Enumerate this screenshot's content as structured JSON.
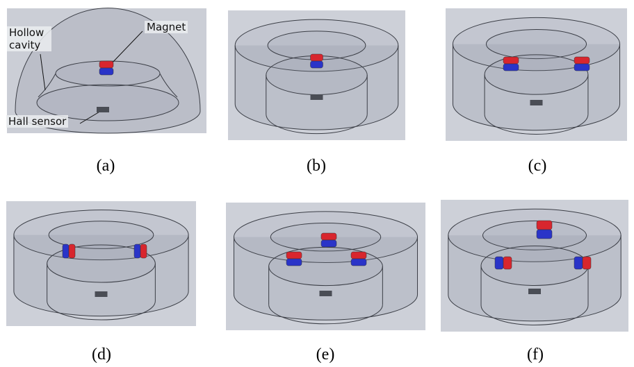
{
  "panels": [
    {
      "caption": "(a)",
      "labels": {
        "cavity": "Hollow cavity",
        "magnet": "Magnet",
        "sensor": "Hall sensor"
      }
    },
    {
      "caption": "(b)"
    },
    {
      "caption": "(c)"
    },
    {
      "caption": "(d)"
    },
    {
      "caption": "(e)"
    },
    {
      "caption": "(f)"
    }
  ]
}
